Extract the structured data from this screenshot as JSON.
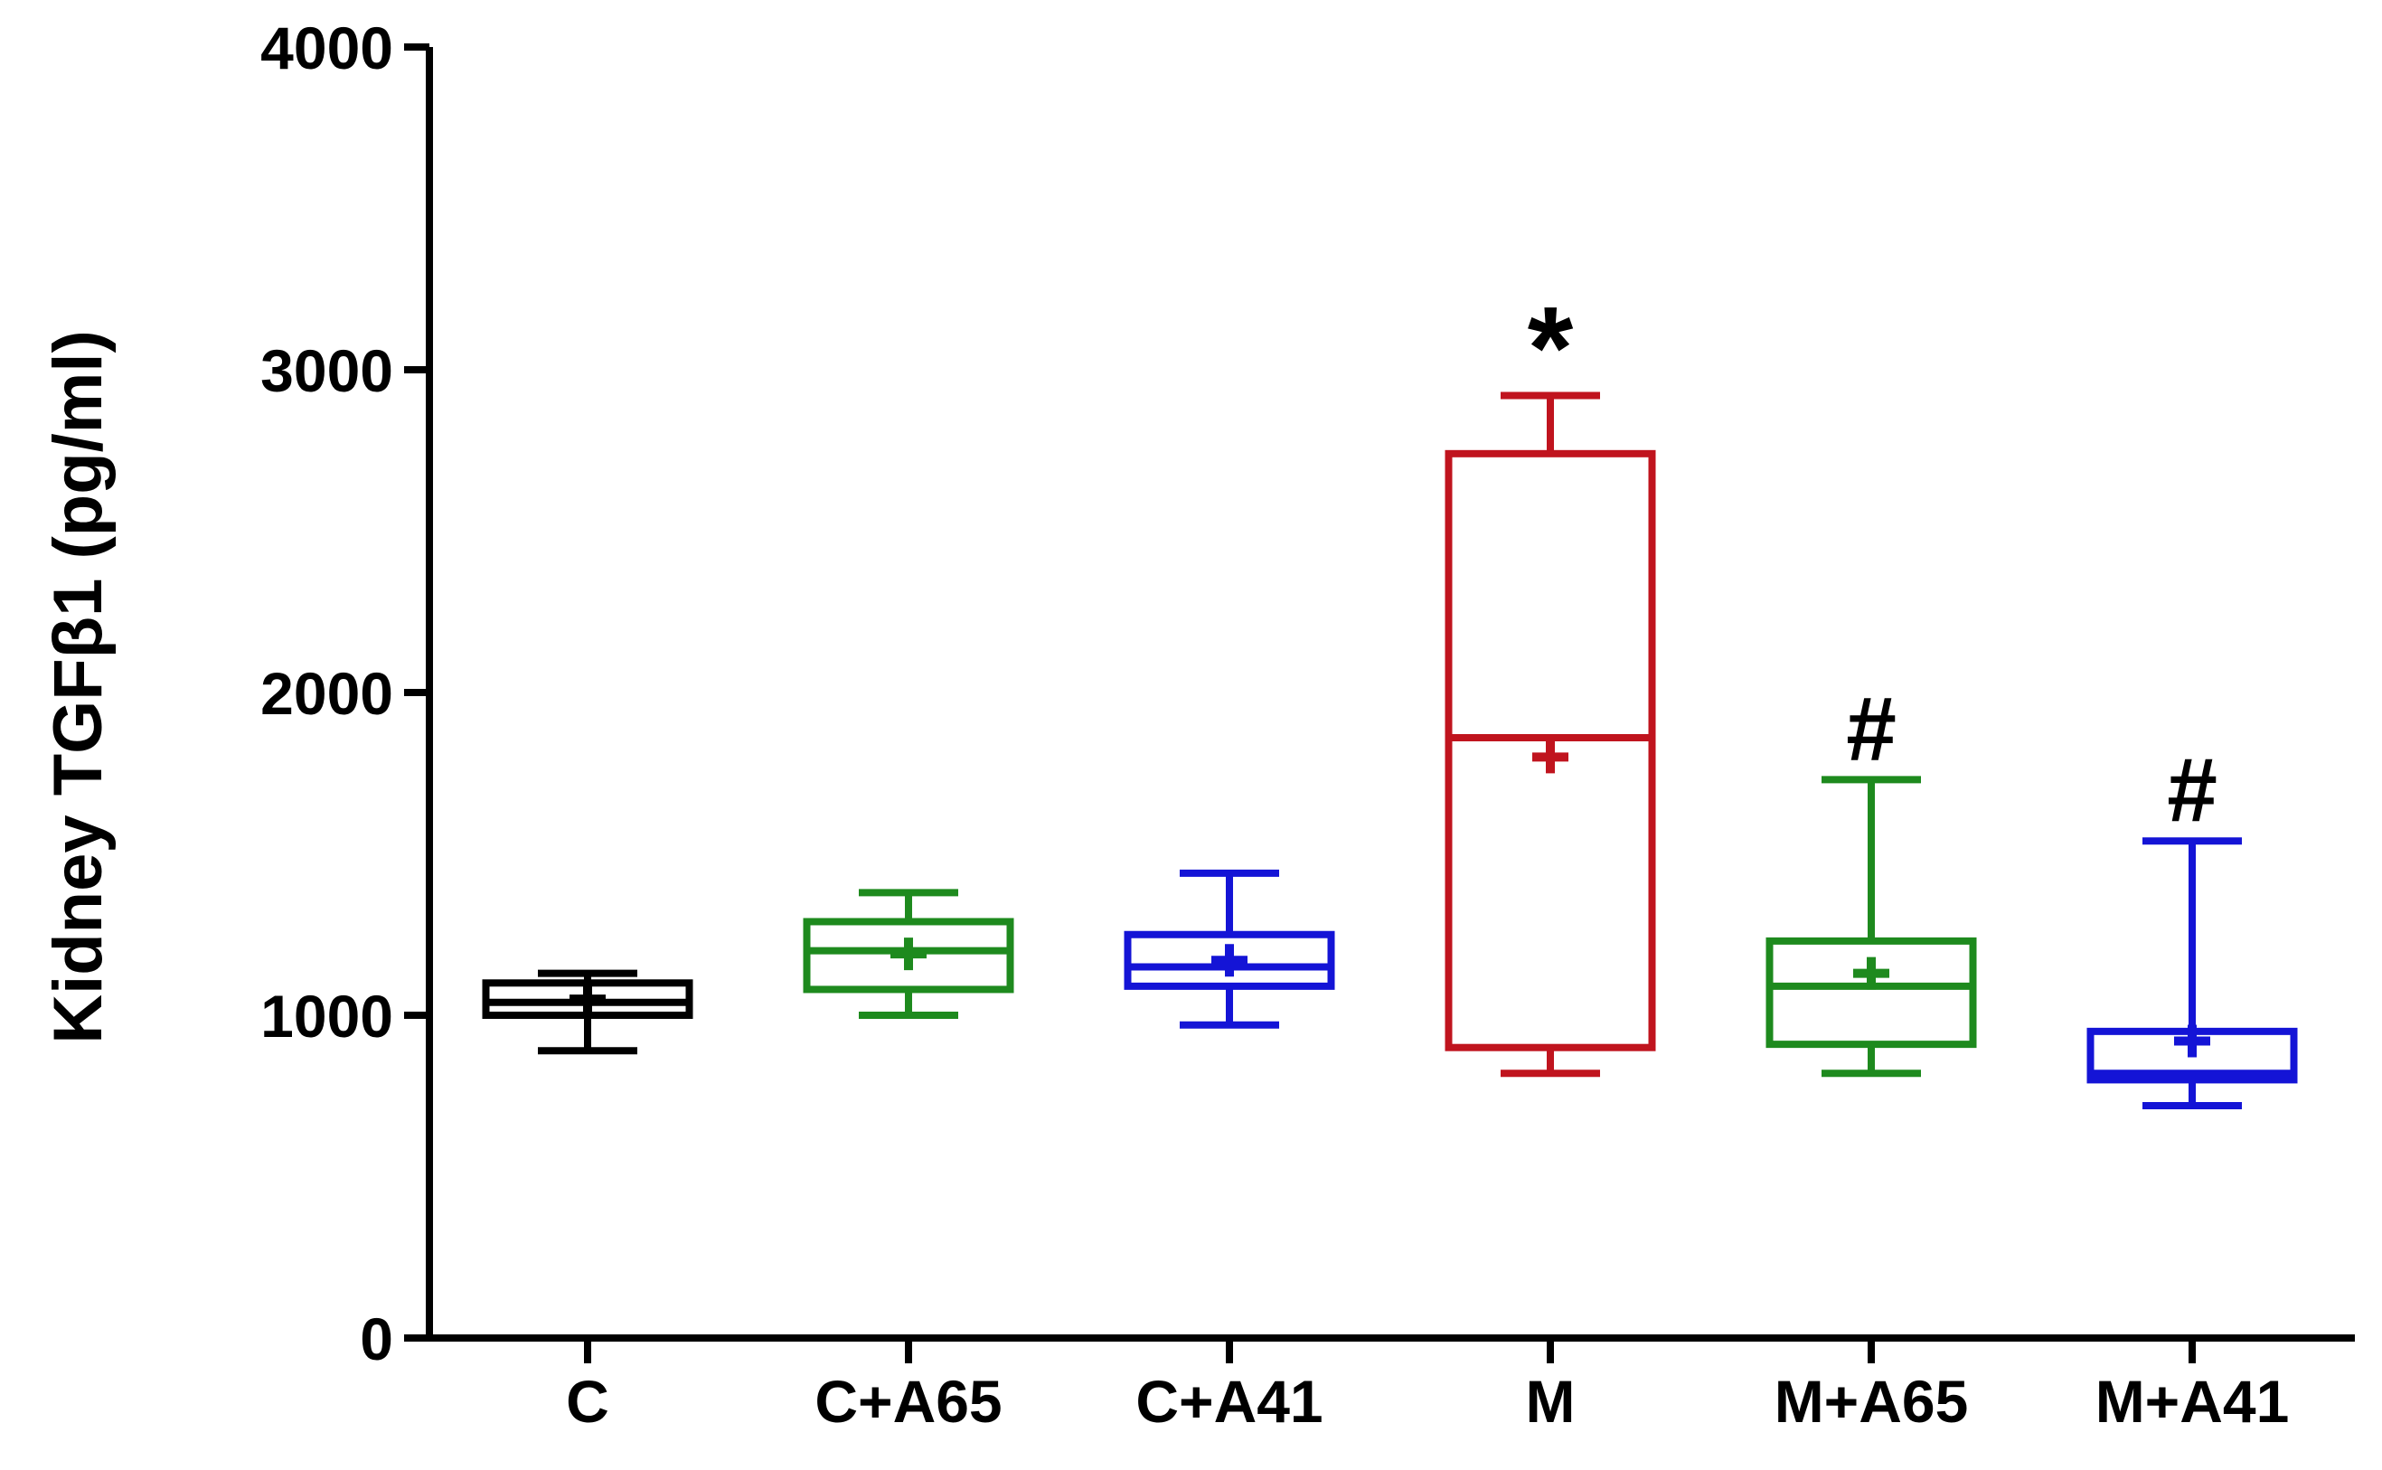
{
  "chart_data": {
    "type": "box",
    "ylabel": "Kidney TGFβ1 (pg/ml)",
    "ylim": [
      0,
      4000
    ],
    "yticks": [
      0,
      1000,
      2000,
      3000,
      4000
    ],
    "ytick_labels": [
      "0",
      "1000",
      "2000",
      "3000",
      "4000"
    ],
    "categories": [
      "C",
      "C+A65",
      "C+A41",
      "M",
      "M+A65",
      "M+A41"
    ],
    "boxes": [
      {
        "category": "C",
        "color": "#000000",
        "min": 890,
        "q1": 1000,
        "median": 1040,
        "q3": 1100,
        "max": 1130,
        "mean": 1050,
        "annotation": ""
      },
      {
        "category": "C+A65",
        "color": "#1e8a1e",
        "min": 1000,
        "q1": 1080,
        "median": 1200,
        "q3": 1290,
        "max": 1380,
        "mean": 1190,
        "annotation": ""
      },
      {
        "category": "C+A41",
        "color": "#1414d6",
        "min": 970,
        "q1": 1090,
        "median": 1150,
        "q3": 1250,
        "max": 1440,
        "mean": 1170,
        "annotation": ""
      },
      {
        "category": "M",
        "color": "#c0141e",
        "min": 820,
        "q1": 900,
        "median": 1860,
        "q3": 2740,
        "max": 2920,
        "mean": 1800,
        "annotation": "*"
      },
      {
        "category": "M+A65",
        "color": "#1e8a1e",
        "min": 820,
        "q1": 910,
        "median": 1090,
        "q3": 1230,
        "max": 1730,
        "mean": 1130,
        "annotation": "#"
      },
      {
        "category": "M+A41",
        "color": "#1414d6",
        "min": 720,
        "q1": 800,
        "median": 820,
        "q3": 950,
        "max": 1540,
        "mean": 920,
        "annotation": "#"
      }
    ]
  }
}
